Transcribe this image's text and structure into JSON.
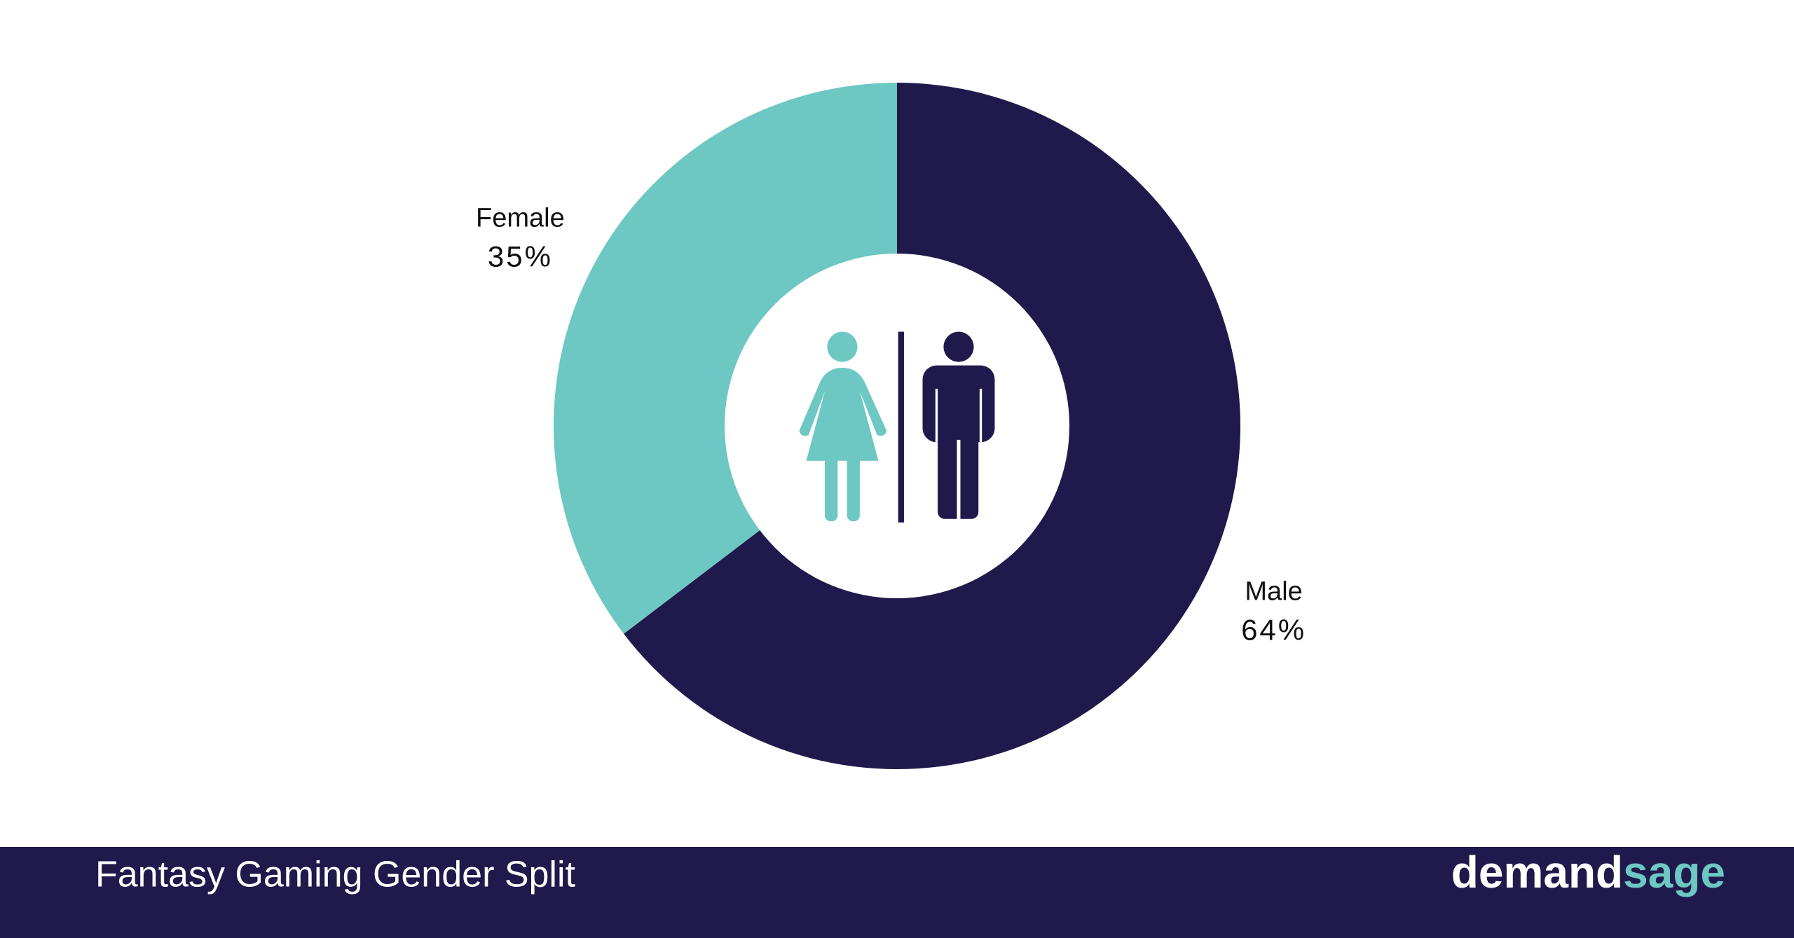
{
  "chart_data": {
    "type": "donut",
    "title": "Fantasy Gaming Gender Split",
    "categories": [
      "Male",
      "Female"
    ],
    "values": [
      64,
      35
    ],
    "value_labels": [
      "64%",
      "35%"
    ],
    "colors": [
      "#1f1a4b",
      "#6dc7c3"
    ]
  },
  "logo": {
    "part1": "demand",
    "part2": "sage"
  }
}
